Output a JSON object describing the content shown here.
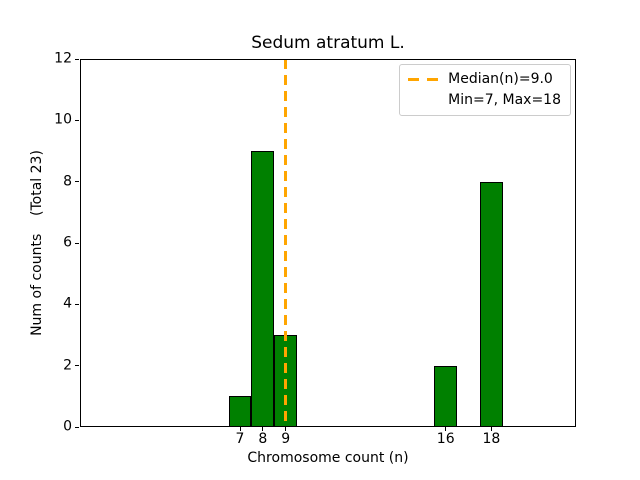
{
  "figure": {
    "title": "Sedum atratum L.",
    "xlabel": "Chromosome count (n)",
    "ylabel": "Num of counts    (Total 23)"
  },
  "legend": {
    "position": "upper right",
    "items": [
      {
        "label": "Median(n)=9.0",
        "marker": "dashed-line",
        "color": "#FFA500"
      },
      {
        "label": "Min=7, Max=18",
        "marker": "none"
      }
    ]
  },
  "chart_data": {
    "type": "bar",
    "title": "Sedum atratum L.",
    "xlabel": "Chromosome count (n)",
    "ylabel": "Num of counts    (Total 23)",
    "categories": [
      7,
      8,
      9,
      16,
      18
    ],
    "values": [
      1,
      9,
      3,
      2,
      8
    ],
    "total_counts": 23,
    "bar_width": 1,
    "bar_color": "#008000",
    "bar_edge_color": "#000000",
    "xlim": [
      0,
      21.7
    ],
    "ylim": [
      0,
      12
    ],
    "x_ticks": [
      7,
      8,
      9,
      16,
      18
    ],
    "y_ticks": [
      0,
      2,
      4,
      6,
      8,
      10,
      12
    ],
    "grid": false,
    "legend_position": "upper right",
    "median_line": {
      "x": 9.0,
      "color": "#FFA500",
      "style": "dashed",
      "label": "Median(n)=9.0"
    },
    "min": 7,
    "max": 18
  }
}
